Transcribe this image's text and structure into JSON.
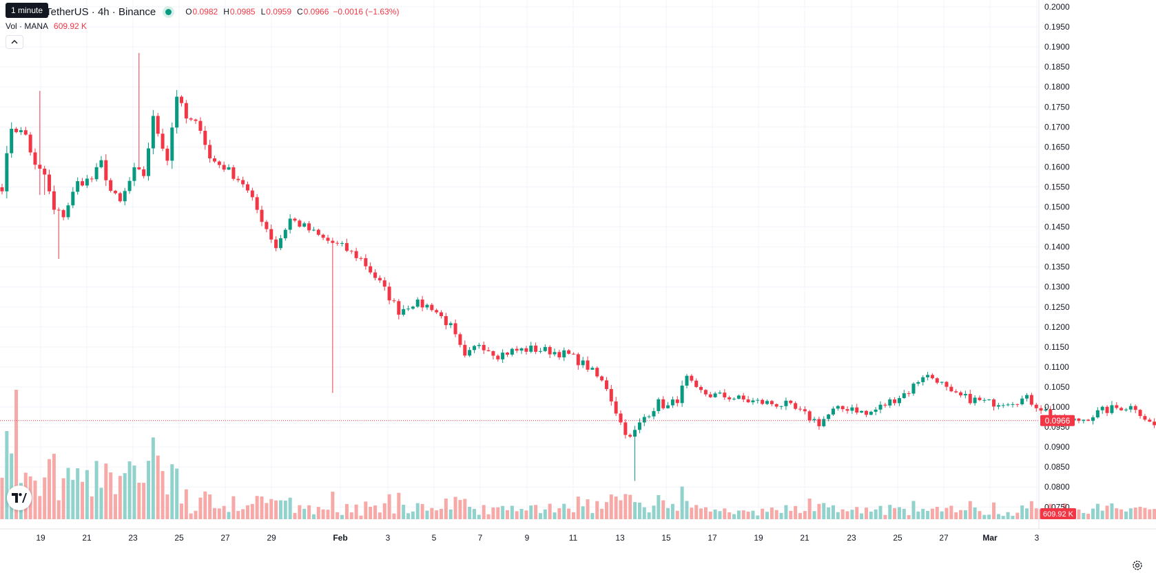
{
  "legend": {
    "title": "traland / TetherUS · 4h · Binance",
    "open_label": "O",
    "open": "0.0982",
    "high_label": "H",
    "high": "0.0985",
    "low_label": "L",
    "low": "0.0959",
    "close_label": "C",
    "close": "0.0966",
    "change": "−0.0016 (−1.63%)",
    "status_color": "#089981"
  },
  "tooltip": "1 minute",
  "volume_legend": {
    "label": "Vol · MANA",
    "value": "609.92 K"
  },
  "icons": {
    "collapse": "chevron-up-icon",
    "logo": "tradingview-logo-icon",
    "settings": "gear-icon"
  },
  "colors": {
    "up": "#089981",
    "down": "#f23645",
    "up_vol": "#92d2cc",
    "down_vol": "#f7a9a7"
  },
  "price_badge": "0.0966",
  "volume_badge": "609.92 K",
  "chart_data": {
    "type": "candlestick",
    "timeframe": "4h",
    "y_ticks": [
      "0.2000",
      "0.1950",
      "0.1900",
      "0.1850",
      "0.1800",
      "0.1750",
      "0.1700",
      "0.1650",
      "0.1600",
      "0.1550",
      "0.1500",
      "0.1450",
      "0.1400",
      "0.1350",
      "0.1300",
      "0.1250",
      "0.1200",
      "0.1150",
      "0.1100",
      "0.1050",
      "0.1000",
      "0.0950",
      "0.0900",
      "0.0850",
      "0.0800",
      "0.0750"
    ],
    "ylim": [
      0.0725,
      0.2
    ],
    "x_ticks": [
      "19",
      "21",
      "23",
      "25",
      "27",
      "29",
      "Feb",
      "3",
      "5",
      "7",
      "9",
      "11",
      "13",
      "15",
      "17",
      "19",
      "21",
      "23",
      "25",
      "27",
      "Mar",
      "3"
    ],
    "last_price": 0.0966,
    "anchors": [
      [
        0,
        0.155
      ],
      [
        2,
        0.17
      ],
      [
        5,
        0.168
      ],
      [
        7,
        0.16
      ],
      [
        9,
        0.158
      ],
      [
        11,
        0.149
      ],
      [
        13,
        0.148
      ],
      [
        16,
        0.156
      ],
      [
        19,
        0.157
      ],
      [
        21,
        0.161
      ],
      [
        23,
        0.154
      ],
      [
        25,
        0.151
      ],
      [
        28,
        0.159
      ],
      [
        30,
        0.158
      ],
      [
        32,
        0.172
      ],
      [
        35,
        0.162
      ],
      [
        37,
        0.178
      ],
      [
        39,
        0.172
      ],
      [
        42,
        0.17
      ],
      [
        44,
        0.162
      ],
      [
        47,
        0.16
      ],
      [
        51,
        0.156
      ],
      [
        55,
        0.147
      ],
      [
        58,
        0.14
      ],
      [
        61,
        0.147
      ],
      [
        64,
        0.145
      ],
      [
        68,
        0.142
      ],
      [
        72,
        0.14
      ],
      [
        76,
        0.137
      ],
      [
        80,
        0.131
      ],
      [
        84,
        0.124
      ],
      [
        87,
        0.126
      ],
      [
        91,
        0.125
      ],
      [
        95,
        0.12
      ],
      [
        98,
        0.112
      ],
      [
        101,
        0.116
      ],
      [
        105,
        0.113
      ],
      [
        108,
        0.114
      ],
      [
        112,
        0.1145
      ],
      [
        116,
        0.114
      ],
      [
        120,
        0.113
      ],
      [
        124,
        0.11
      ],
      [
        128,
        0.105
      ],
      [
        131,
        0.096
      ],
      [
        133,
        0.092
      ],
      [
        136,
        0.0975
      ],
      [
        139,
        0.101
      ],
      [
        141,
        0.1
      ],
      [
        143,
        0.102
      ],
      [
        145,
        0.107
      ],
      [
        147,
        0.104
      ],
      [
        150,
        0.103
      ],
      [
        154,
        0.1025
      ],
      [
        158,
        0.1015
      ],
      [
        162,
        0.101
      ],
      [
        166,
        0.1005
      ],
      [
        170,
        0.098
      ],
      [
        173,
        0.096
      ],
      [
        176,
        0.099
      ],
      [
        180,
        0.1
      ],
      [
        183,
        0.098
      ],
      [
        186,
        0.1
      ],
      [
        189,
        0.102
      ],
      [
        192,
        0.104
      ],
      [
        195,
        0.108
      ],
      [
        198,
        0.107
      ],
      [
        201,
        0.103
      ],
      [
        205,
        0.102
      ],
      [
        209,
        0.101
      ],
      [
        213,
        0.1015
      ],
      [
        217,
        0.102
      ],
      [
        221,
        0.099
      ],
      [
        225,
        0.096
      ],
      [
        229,
        0.097
      ],
      [
        233,
        0.099
      ],
      [
        237,
        0.1
      ],
      [
        240,
        0.1
      ],
      [
        243,
        0.096
      ],
      [
        246,
        0.094
      ],
      [
        249,
        0.092
      ],
      [
        252,
        0.092
      ],
      [
        255,
        0.091
      ],
      [
        258,
        0.09
      ],
      [
        261,
        0.091
      ],
      [
        264,
        0.096
      ],
      [
        266,
        0.102
      ],
      [
        268,
        0.103
      ],
      [
        271,
        0.0985
      ],
      [
        274,
        0.0975
      ],
      [
        277,
        0.1
      ],
      [
        280,
        0.098
      ],
      [
        283,
        0.095
      ],
      [
        285,
        0.091
      ],
      [
        288,
        0.096
      ],
      [
        290,
        0.098
      ],
      [
        292,
        0.0966
      ]
    ]
  }
}
